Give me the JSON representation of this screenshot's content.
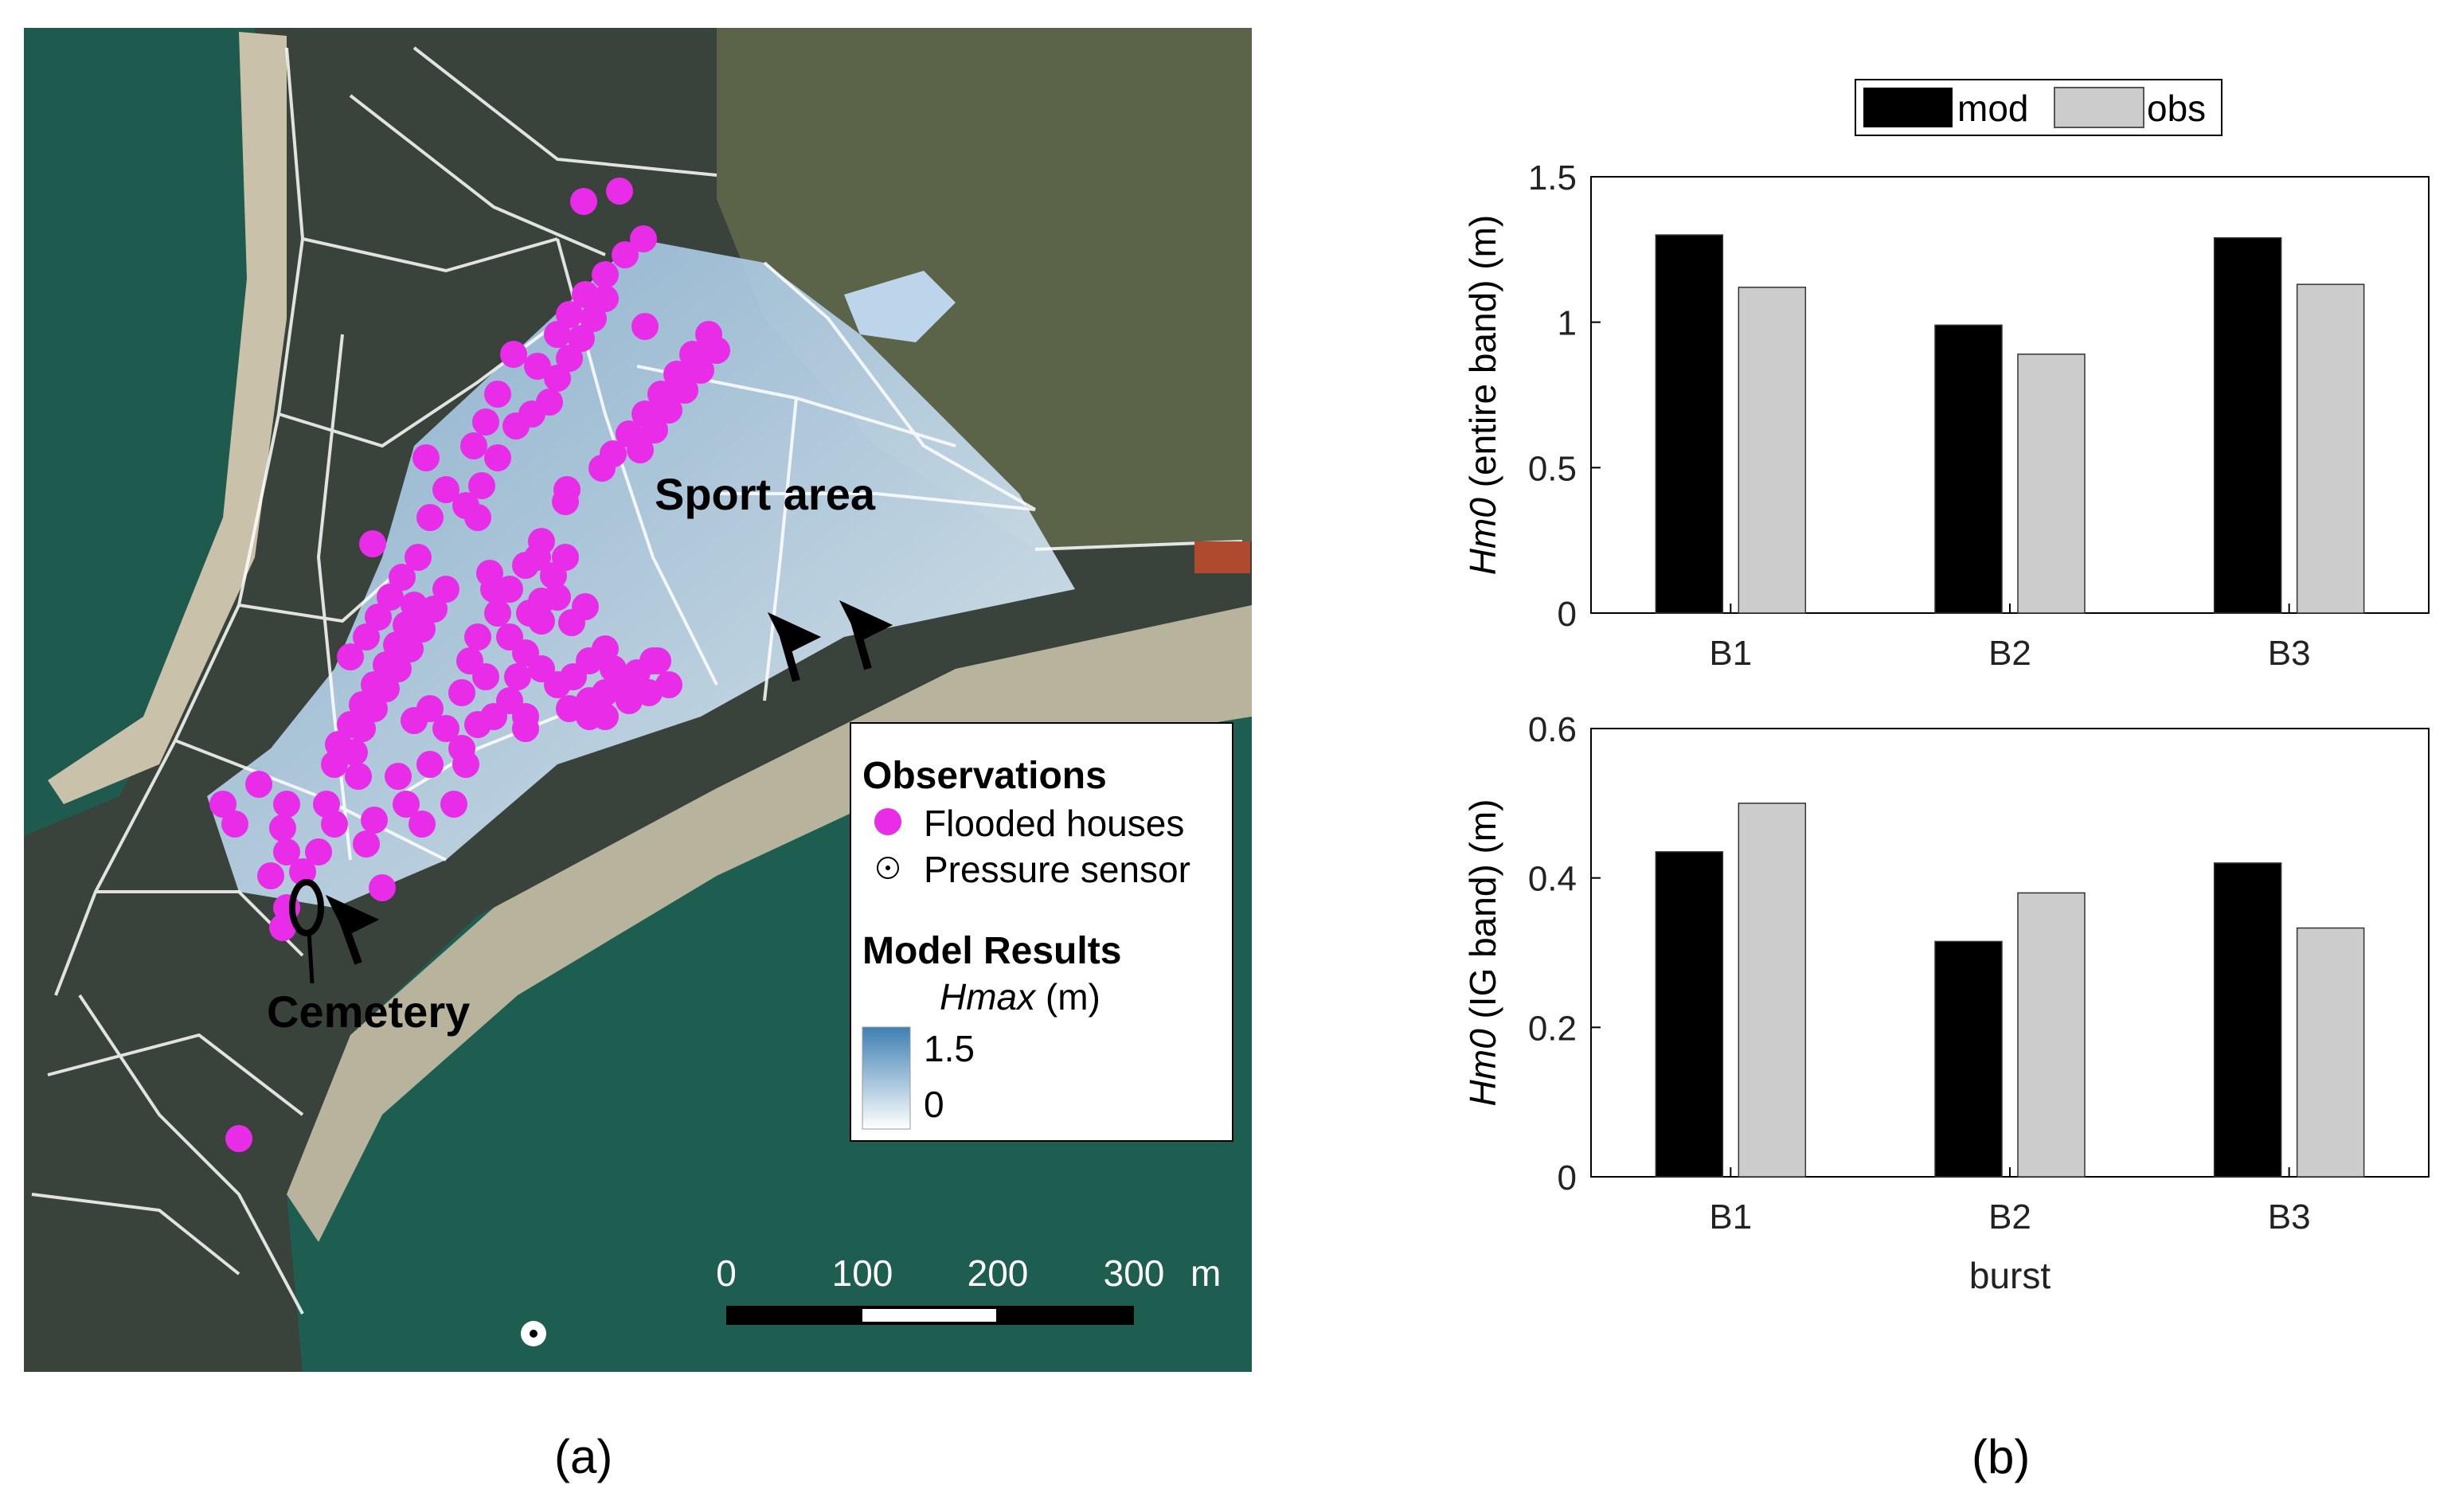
{
  "panel_a": {
    "caption": "(a)",
    "labels": {
      "sport_area": "Sport area",
      "cemetery": "Cemetery"
    },
    "legend": {
      "observations_title": "Observations",
      "flooded_houses": "Flooded houses",
      "pressure_sensor": "Pressure sensor",
      "model_title": "Model Results",
      "variable": "Hmax",
      "unit": "(m)",
      "colorbar_max": "1.5",
      "colorbar_min": "0"
    },
    "scalebar": {
      "ticks": [
        "0",
        "100",
        "200",
        "300"
      ],
      "unit": "m"
    },
    "colors": {
      "flooded": "#e82ce8",
      "flood_dark": "#4a86b8",
      "flood_light": "#e4f0f8",
      "sea": "#1f5a4a",
      "land": "#2e3a33"
    }
  },
  "panel_b": {
    "caption": "(b)",
    "legend": [
      "mod",
      "obs"
    ],
    "colors": {
      "mod": "#000000",
      "obs": "#cccccc"
    }
  },
  "chart_data": [
    {
      "type": "bar",
      "categories": [
        "B1",
        "B2",
        "B3"
      ],
      "series": [
        {
          "name": "mod",
          "values": [
            1.3,
            0.99,
            1.29
          ]
        },
        {
          "name": "obs",
          "values": [
            1.12,
            0.89,
            1.13
          ]
        }
      ],
      "ylabel_italic": "Hm0",
      "ylabel_rest": " (entire band) (m)",
      "xlabel": "",
      "ylim": [
        0,
        1.5
      ],
      "yticks": [
        "0",
        "0.5",
        "1",
        "1.5"
      ],
      "legend_position": "top"
    },
    {
      "type": "bar",
      "categories": [
        "B1",
        "B2",
        "B3"
      ],
      "series": [
        {
          "name": "mod",
          "values": [
            0.435,
            0.315,
            0.42
          ]
        },
        {
          "name": "obs",
          "values": [
            0.5,
            0.38,
            0.333
          ]
        }
      ],
      "ylabel_italic": "Hm0",
      "ylabel_rest": " (IG band) (m)",
      "xlabel": "burst",
      "ylim": [
        0,
        0.6
      ],
      "yticks": [
        "0",
        "0.2",
        "0.4",
        "0.6"
      ]
    }
  ]
}
